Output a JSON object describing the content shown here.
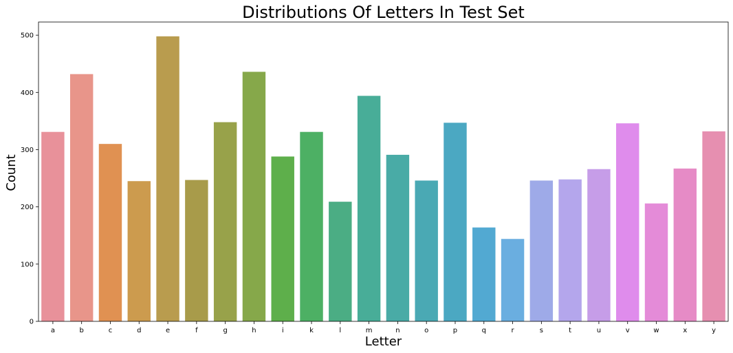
{
  "chart_data": {
    "type": "bar",
    "title": "Distributions Of Letters In Test Set",
    "xlabel": "Letter",
    "ylabel": "Count",
    "categories": [
      "a",
      "b",
      "c",
      "d",
      "e",
      "f",
      "g",
      "h",
      "i",
      "k",
      "l",
      "m",
      "n",
      "o",
      "p",
      "q",
      "r",
      "s",
      "t",
      "u",
      "v",
      "w",
      "x",
      "y"
    ],
    "values": [
      331,
      432,
      310,
      245,
      498,
      247,
      348,
      436,
      288,
      331,
      209,
      394,
      291,
      246,
      347,
      164,
      144,
      246,
      248,
      266,
      346,
      206,
      267,
      332
    ],
    "colors": [
      "#e8919a",
      "#e8958a",
      "#e09152",
      "#cc9b4e",
      "#b99c4e",
      "#a89b4a",
      "#98a24a",
      "#86a84a",
      "#5eaf4b",
      "#4db064",
      "#4bad84",
      "#48ad98",
      "#49aba6",
      "#4aa9b4",
      "#4ba8c2",
      "#52a9d2",
      "#6aaee0",
      "#9eaae8",
      "#b4a6ec",
      "#c69de8",
      "#df8cec",
      "#e48bd8",
      "#e68bc6",
      "#e68fb0"
    ],
    "yticks": [
      0,
      100,
      200,
      300,
      400,
      500
    ],
    "ylim": [
      0,
      523
    ],
    "grid": false,
    "legend": false
  }
}
